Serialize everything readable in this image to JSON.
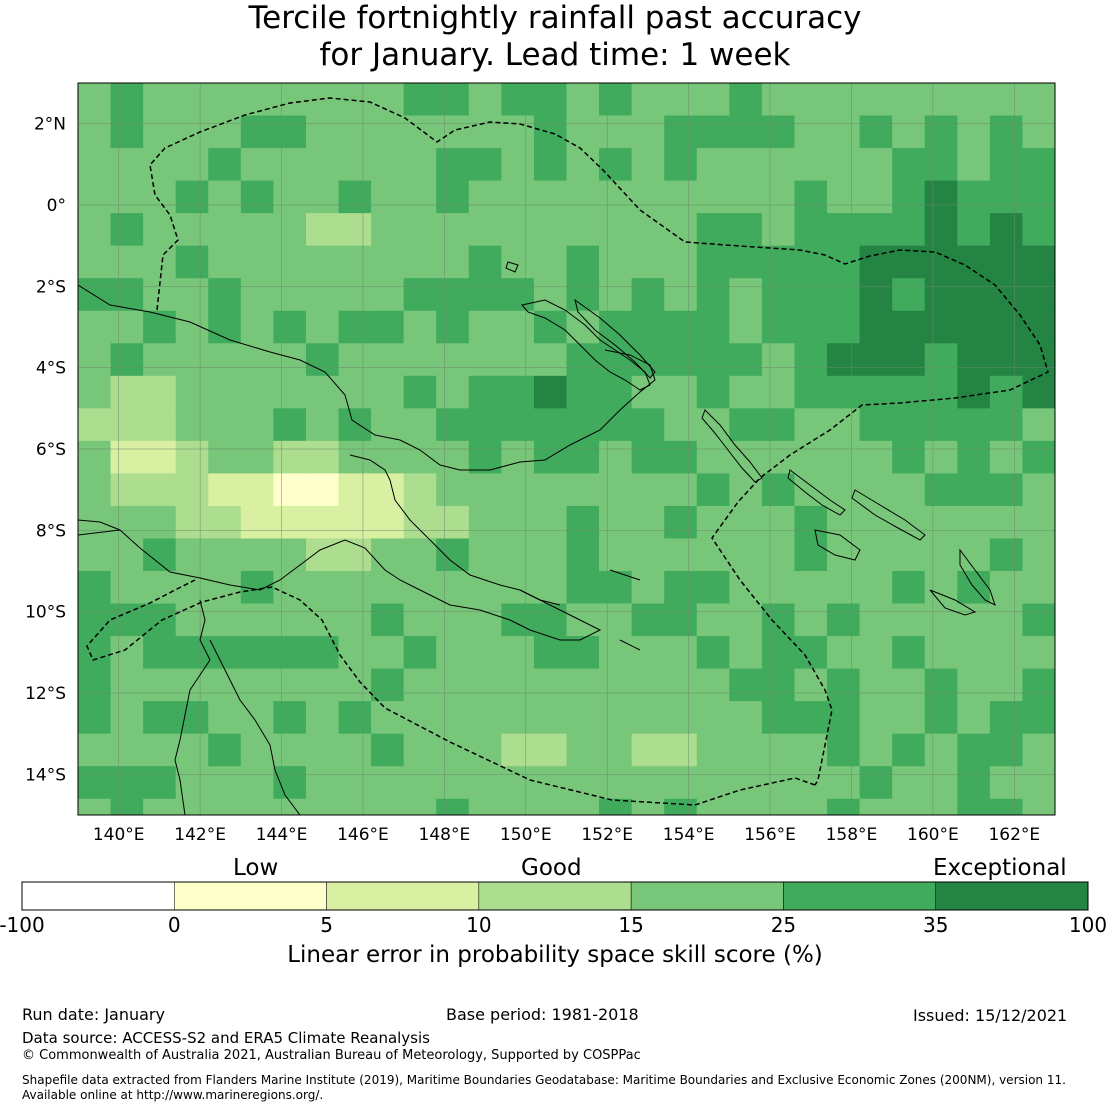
{
  "title_line1": "Tercile fortnightly rainfall past accuracy",
  "title_line2": "for January. Lead time: 1 week",
  "map": {
    "lon_labels": [
      "140°E",
      "142°E",
      "144°E",
      "146°E",
      "148°E",
      "150°E",
      "152°E",
      "154°E",
      "156°E",
      "158°E",
      "160°E",
      "162°E"
    ],
    "lat_labels": [
      "2°N",
      "0°",
      "2°S",
      "4°S",
      "6°S",
      "8°S",
      "10°S",
      "12°S",
      "14°S"
    ],
    "lon_range": [
      139,
      163
    ],
    "lat_range": [
      -15,
      3
    ],
    "grid_resolution_deg": 0.8,
    "skill_summary": {
      "north_east_region": "35-100",
      "central_north_region": "15-25",
      "new_guinea_south_interior": "0-10",
      "coral_sea_region": "10-25"
    }
  },
  "colorbar": {
    "categories": [
      "Low",
      "Good",
      "Exceptional"
    ],
    "ticks": [
      "-100",
      "0",
      "5",
      "10",
      "15",
      "25",
      "35",
      "100"
    ],
    "colors": [
      "#ffffff",
      "#ffffcc",
      "#d9f0a3",
      "#addd8e",
      "#78c679",
      "#41ab5d",
      "#238443"
    ],
    "caption": "Linear error in probability space skill score (%)"
  },
  "footer": {
    "run_date": "Run date: January",
    "base_period": "Base period: 1981-2018",
    "issued": "Issued: 15/12/2021",
    "data_source": "Data source: ACCESS-S2 and ERA5 Climate Reanalysis",
    "copyright": "© Commonwealth of Australia 2021, Australian Bureau of Meteorology, Supported by COSPPac",
    "shapefile_line1": "Shapefile data extracted from Flanders Marine Institute (2019), Maritime Boundaries Geodatabase: Maritime Boundaries and Exclusive Economic Zones (200NM), version 11.",
    "shapefile_line2": "Available online at http://www.marineregions.org/."
  }
}
